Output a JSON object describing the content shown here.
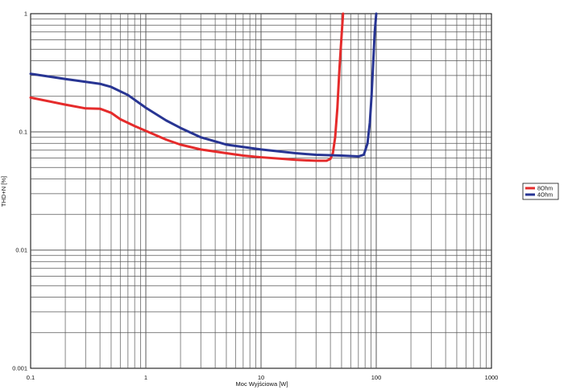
{
  "chart_data": {
    "type": "line",
    "title": "",
    "xlabel": "Moc Wyjściowa [W]",
    "ylabel": "THD+N [%]",
    "xscale": "log",
    "yscale": "log",
    "xlim": [
      0.1,
      1000
    ],
    "ylim": [
      0.001,
      1
    ],
    "x_ticks": [
      {
        "value": 0.1,
        "label": "0.1"
      },
      {
        "value": 1,
        "label": "1"
      },
      {
        "value": 10,
        "label": "10"
      },
      {
        "value": 100,
        "label": "100"
      },
      {
        "value": 1000,
        "label": "1000"
      }
    ],
    "y_ticks": [
      {
        "value": 1,
        "label": "1"
      },
      {
        "value": 0.1,
        "label": "0.1"
      },
      {
        "value": 0.01,
        "label": "0.01"
      },
      {
        "value": 0.001,
        "label": "0.001"
      }
    ],
    "grid": true,
    "legend_position": "right",
    "series": [
      {
        "name": "8Ohm",
        "color": "#e52b2b",
        "points": [
          [
            0.1,
            0.195
          ],
          [
            0.2,
            0.17
          ],
          [
            0.3,
            0.158
          ],
          [
            0.4,
            0.157
          ],
          [
            0.5,
            0.145
          ],
          [
            0.6,
            0.128
          ],
          [
            0.8,
            0.112
          ],
          [
            1.0,
            0.102
          ],
          [
            1.5,
            0.086
          ],
          [
            2.0,
            0.078
          ],
          [
            3.0,
            0.071
          ],
          [
            5.0,
            0.066
          ],
          [
            7.0,
            0.063
          ],
          [
            10.0,
            0.061
          ],
          [
            20.0,
            0.058
          ],
          [
            30.0,
            0.057
          ],
          [
            37.0,
            0.057
          ],
          [
            40.0,
            0.059
          ],
          [
            42.0,
            0.066
          ],
          [
            44.0,
            0.09
          ],
          [
            46.0,
            0.16
          ],
          [
            48.0,
            0.35
          ],
          [
            50.0,
            0.65
          ],
          [
            51.5,
            1.0
          ]
        ]
      },
      {
        "name": "4Ohm",
        "color": "#283593",
        "points": [
          [
            0.1,
            0.31
          ],
          [
            0.2,
            0.28
          ],
          [
            0.3,
            0.265
          ],
          [
            0.4,
            0.255
          ],
          [
            0.5,
            0.24
          ],
          [
            0.7,
            0.205
          ],
          [
            1.0,
            0.16
          ],
          [
            1.5,
            0.125
          ],
          [
            2.0,
            0.108
          ],
          [
            3.0,
            0.09
          ],
          [
            5.0,
            0.078
          ],
          [
            10.0,
            0.071
          ],
          [
            20.0,
            0.066
          ],
          [
            30.0,
            0.064
          ],
          [
            50.0,
            0.063
          ],
          [
            70.0,
            0.062
          ],
          [
            78.0,
            0.064
          ],
          [
            84.0,
            0.08
          ],
          [
            88.0,
            0.12
          ],
          [
            91.0,
            0.2
          ],
          [
            94.0,
            0.38
          ],
          [
            97.0,
            0.7
          ],
          [
            100.0,
            1.0
          ]
        ]
      }
    ]
  }
}
